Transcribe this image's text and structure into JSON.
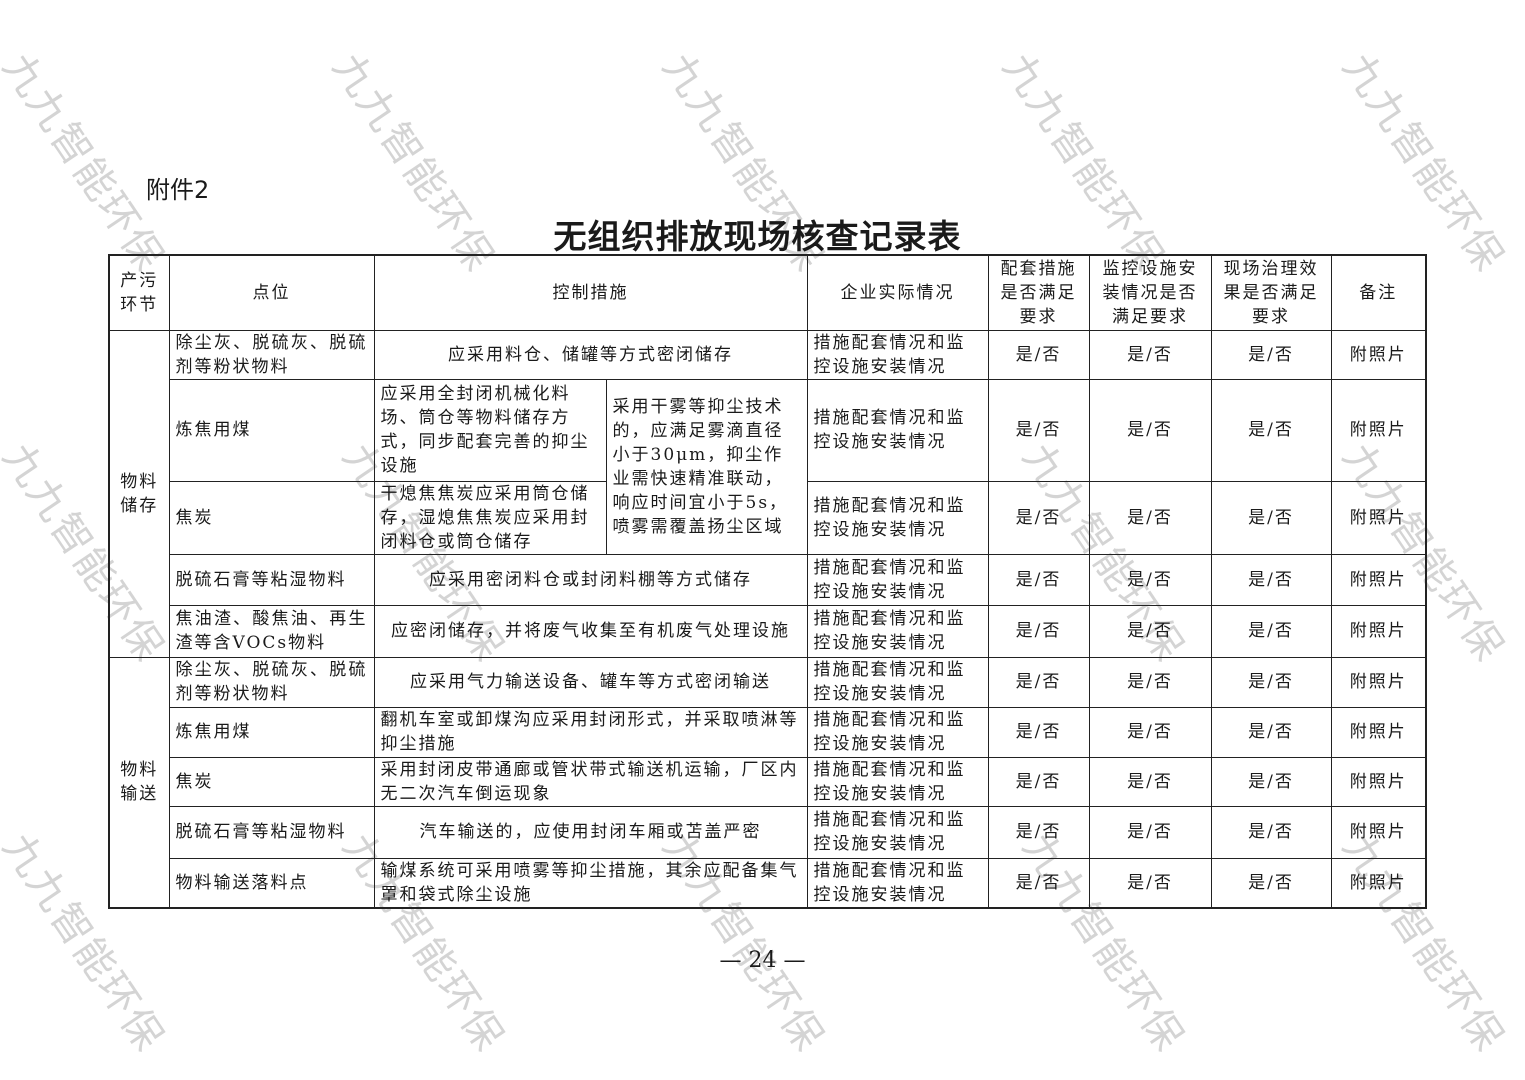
{
  "watermark": "九九智能环保",
  "attachment_label": "附件2",
  "title": "无组织排放现场核查记录表",
  "headers": [
    "产污环节",
    "点位",
    "控制措施",
    "企业实际情况",
    "配套措施是否满足要求",
    "监控设施安装情况是否满足要求",
    "现场治理效果是否满足要求",
    "备注"
  ],
  "defaults": {
    "actual": "措施配套情况和监控设施安装情况",
    "yes_no": "是/否",
    "note": "附照片"
  },
  "sections": [
    {
      "stage": "物料储存",
      "rows": [
        {
          "point": "除尘灰、脱硫灰、脱硫剂等粉状物料",
          "measure": "应采用料仓、储罐等方式密闭储存"
        },
        {
          "point": "炼焦用煤",
          "measure": "应采用全封闭机械化料场、筒仓等物料储存方式，同步配套完善的抑尘设施",
          "shared_measure": "采用干雾等抑尘技术的，应满足雾滴直径小于30μm，抑尘作业需快速精准联动，响应时间宜小于5s，喷雾需覆盖扬尘区域"
        },
        {
          "point": "焦炭",
          "measure": "干熄焦焦炭应采用筒仓储存，湿熄焦焦炭应采用封闭料仓或筒仓储存"
        },
        {
          "point": "脱硫石膏等粘湿物料",
          "measure": "应采用密闭料仓或封闭料棚等方式储存"
        },
        {
          "point": "焦油渣、酸焦油、再生渣等含VOCs物料",
          "measure": "应密闭储存，并将废气收集至有机废气处理设施"
        }
      ]
    },
    {
      "stage": "物料输送",
      "rows": [
        {
          "point": "除尘灰、脱硫灰、脱硫剂等粉状物料",
          "measure": "应采用气力输送设备、罐车等方式密闭输送"
        },
        {
          "point": "炼焦用煤",
          "measure": "翻机车室或卸煤沟应采用封闭形式，并采取喷淋等抑尘措施"
        },
        {
          "point": "焦炭",
          "measure": "采用封闭皮带通廊或管状带式输送机运输，厂区内无二次汽车倒运现象"
        },
        {
          "point": "脱硫石膏等粘湿物料",
          "measure": "汽车输送的，应使用封闭车厢或苫盖严密"
        },
        {
          "point": "物料输送落料点",
          "measure": "输煤系统可采用喷雾等抑尘措施，其余应配备集气罩和袋式除尘设施"
        }
      ]
    }
  ],
  "page_number": "— 24 —"
}
